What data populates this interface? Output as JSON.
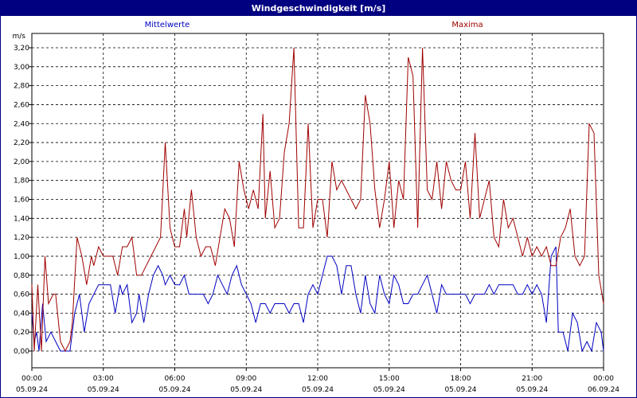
{
  "window_title": "Windgeschwindigkeit [m/s]",
  "chart_data": {
    "type": "line",
    "title": "Windgeschwindigkeit [m/s]",
    "ylabel": "m/s",
    "xlabel": "",
    "ylim": [
      0,
      3.3
    ],
    "xlim_hours": [
      0,
      24
    ],
    "grid": true,
    "y_ticks": [
      "0,00",
      "0,20",
      "0,40",
      "0,60",
      "0,80",
      "1,00",
      "1,20",
      "1,40",
      "1,60",
      "1,80",
      "2,00",
      "2,20",
      "2,40",
      "2,60",
      "2,80",
      "3,00",
      "3,20"
    ],
    "x_ticks": [
      {
        "time": "00:00",
        "date": "05.09.24"
      },
      {
        "time": "03:00",
        "date": "05.09.24"
      },
      {
        "time": "06:00",
        "date": "05.09.24"
      },
      {
        "time": "09:00",
        "date": "05.09.24"
      },
      {
        "time": "12:00",
        "date": "05.09.24"
      },
      {
        "time": "15:00",
        "date": "05.09.24"
      },
      {
        "time": "18:00",
        "date": "05.09.24"
      },
      {
        "time": "21:00",
        "date": "05.09.24"
      },
      {
        "time": "00:00",
        "date": "06.09.24"
      }
    ],
    "series": [
      {
        "name": "Mittelwerte",
        "color": "#0000c0",
        "points": [
          [
            0,
            0.4
          ],
          [
            0.1,
            0.1
          ],
          [
            0.2,
            0.2
          ],
          [
            0.3,
            0
          ],
          [
            0.45,
            0.5
          ],
          [
            0.6,
            0.1
          ],
          [
            0.8,
            0.2
          ],
          [
            1,
            0.1
          ],
          [
            1.2,
            0
          ],
          [
            1.4,
            0
          ],
          [
            1.6,
            0
          ],
          [
            1.8,
            0.4
          ],
          [
            2,
            0.6
          ],
          [
            2.2,
            0.2
          ],
          [
            2.4,
            0.5
          ],
          [
            2.6,
            0.6
          ],
          [
            2.8,
            0.7
          ],
          [
            3.0,
            0.7
          ],
          [
            3.3,
            0.7
          ],
          [
            3.5,
            0.4
          ],
          [
            3.7,
            0.7
          ],
          [
            3.8,
            0.6
          ],
          [
            4,
            0.7
          ],
          [
            4.2,
            0.3
          ],
          [
            4.4,
            0.4
          ],
          [
            4.5,
            0.6
          ],
          [
            4.7,
            0.3
          ],
          [
            4.9,
            0.6
          ],
          [
            5.1,
            0.8
          ],
          [
            5.3,
            0.9
          ],
          [
            5.5,
            0.8
          ],
          [
            5.6,
            0.7
          ],
          [
            5.8,
            0.8
          ],
          [
            6,
            0.7
          ],
          [
            6.2,
            0.7
          ],
          [
            6.4,
            0.8
          ],
          [
            6.6,
            0.6
          ],
          [
            6.8,
            0.6
          ],
          [
            7,
            0.6
          ],
          [
            7.2,
            0.6
          ],
          [
            7.4,
            0.5
          ],
          [
            7.6,
            0.6
          ],
          [
            7.8,
            0.8
          ],
          [
            8,
            0.7
          ],
          [
            8.2,
            0.6
          ],
          [
            8.4,
            0.8
          ],
          [
            8.6,
            0.9
          ],
          [
            8.8,
            0.7
          ],
          [
            9,
            0.6
          ],
          [
            9.2,
            0.5
          ],
          [
            9.4,
            0.3
          ],
          [
            9.6,
            0.5
          ],
          [
            9.8,
            0.5
          ],
          [
            10,
            0.4
          ],
          [
            10.2,
            0.5
          ],
          [
            10.4,
            0.5
          ],
          [
            10.6,
            0.5
          ],
          [
            10.8,
            0.4
          ],
          [
            11,
            0.5
          ],
          [
            11.2,
            0.5
          ],
          [
            11.4,
            0.3
          ],
          [
            11.6,
            0.6
          ],
          [
            11.8,
            0.7
          ],
          [
            12,
            0.6
          ],
          [
            12.2,
            0.8
          ],
          [
            12.4,
            1.0
          ],
          [
            12.6,
            1.0
          ],
          [
            12.8,
            0.9
          ],
          [
            13,
            0.6
          ],
          [
            13.2,
            0.9
          ],
          [
            13.4,
            0.9
          ],
          [
            13.6,
            0.6
          ],
          [
            13.8,
            0.4
          ],
          [
            14,
            0.8
          ],
          [
            14.2,
            0.5
          ],
          [
            14.4,
            0.4
          ],
          [
            14.6,
            0.8
          ],
          [
            14.8,
            0.6
          ],
          [
            15,
            0.5
          ],
          [
            15.2,
            0.8
          ],
          [
            15.4,
            0.7
          ],
          [
            15.6,
            0.5
          ],
          [
            15.8,
            0.5
          ],
          [
            16,
            0.6
          ],
          [
            16.2,
            0.6
          ],
          [
            16.4,
            0.7
          ],
          [
            16.6,
            0.8
          ],
          [
            16.8,
            0.6
          ],
          [
            17,
            0.4
          ],
          [
            17.2,
            0.7
          ],
          [
            17.4,
            0.6
          ],
          [
            17.6,
            0.6
          ],
          [
            17.8,
            0.6
          ],
          [
            18,
            0.6
          ],
          [
            18.2,
            0.6
          ],
          [
            18.4,
            0.5
          ],
          [
            18.6,
            0.6
          ],
          [
            18.8,
            0.6
          ],
          [
            19,
            0.6
          ],
          [
            19.2,
            0.7
          ],
          [
            19.4,
            0.6
          ],
          [
            19.6,
            0.7
          ],
          [
            19.8,
            0.7
          ],
          [
            20,
            0.7
          ],
          [
            20.2,
            0.7
          ],
          [
            20.4,
            0.6
          ],
          [
            20.6,
            0.6
          ],
          [
            20.8,
            0.7
          ],
          [
            21,
            0.6
          ],
          [
            21.2,
            0.7
          ],
          [
            21.4,
            0.6
          ],
          [
            21.6,
            0.3
          ],
          [
            21.8,
            1.0
          ],
          [
            22,
            1.1
          ],
          [
            22.1,
            0.2
          ],
          [
            22.3,
            0.2
          ],
          [
            22.5,
            0
          ],
          [
            22.7,
            0.4
          ],
          [
            22.9,
            0.3
          ],
          [
            23.1,
            0
          ],
          [
            23.3,
            0.1
          ],
          [
            23.5,
            0
          ],
          [
            23.7,
            0.3
          ],
          [
            23.9,
            0.2
          ],
          [
            24,
            0
          ]
        ]
      },
      {
        "name": "Maxima",
        "color": "#a00000",
        "points": [
          [
            0,
            0.7
          ],
          [
            0.1,
            0
          ],
          [
            0.25,
            0.7
          ],
          [
            0.4,
            0
          ],
          [
            0.55,
            1.0
          ],
          [
            0.7,
            0.5
          ],
          [
            0.9,
            0.6
          ],
          [
            1.0,
            0.6
          ],
          [
            1.2,
            0.1
          ],
          [
            1.4,
            0
          ],
          [
            1.6,
            0.1
          ],
          [
            1.7,
            0.3
          ],
          [
            1.9,
            1.2
          ],
          [
            2.1,
            1.0
          ],
          [
            2.3,
            0.7
          ],
          [
            2.5,
            1.0
          ],
          [
            2.6,
            0.9
          ],
          [
            2.8,
            1.1
          ],
          [
            3.0,
            1.0
          ],
          [
            3.2,
            1.0
          ],
          [
            3.4,
            1.0
          ],
          [
            3.6,
            0.8
          ],
          [
            3.8,
            1.1
          ],
          [
            4,
            1.1
          ],
          [
            4.2,
            1.2
          ],
          [
            4.4,
            0.8
          ],
          [
            4.6,
            0.8
          ],
          [
            4.8,
            0.9
          ],
          [
            5.0,
            1.0
          ],
          [
            5.2,
            1.1
          ],
          [
            5.4,
            1.2
          ],
          [
            5.6,
            2.2
          ],
          [
            5.8,
            1.3
          ],
          [
            6.0,
            1.1
          ],
          [
            6.2,
            1.1
          ],
          [
            6.4,
            1.5
          ],
          [
            6.5,
            1.2
          ],
          [
            6.7,
            1.7
          ],
          [
            6.9,
            1.2
          ],
          [
            7.1,
            1.0
          ],
          [
            7.3,
            1.1
          ],
          [
            7.5,
            1.1
          ],
          [
            7.7,
            0.9
          ],
          [
            7.9,
            1.2
          ],
          [
            8.1,
            1.5
          ],
          [
            8.3,
            1.4
          ],
          [
            8.5,
            1.1
          ],
          [
            8.7,
            2.0
          ],
          [
            8.9,
            1.7
          ],
          [
            9.1,
            1.5
          ],
          [
            9.3,
            1.7
          ],
          [
            9.5,
            1.5
          ],
          [
            9.7,
            2.5
          ],
          [
            9.8,
            1.4
          ],
          [
            10,
            1.9
          ],
          [
            10.2,
            1.3
          ],
          [
            10.4,
            1.4
          ],
          [
            10.6,
            2.1
          ],
          [
            10.8,
            2.4
          ],
          [
            11,
            3.2
          ],
          [
            11.2,
            1.3
          ],
          [
            11.4,
            1.3
          ],
          [
            11.6,
            2.4
          ],
          [
            11.8,
            1.3
          ],
          [
            12.0,
            1.6
          ],
          [
            12.2,
            1.6
          ],
          [
            12.4,
            1.2
          ],
          [
            12.6,
            2.0
          ],
          [
            12.8,
            1.7
          ],
          [
            13,
            1.8
          ],
          [
            13.2,
            1.7
          ],
          [
            13.4,
            1.6
          ],
          [
            13.6,
            1.5
          ],
          [
            13.8,
            1.6
          ],
          [
            14,
            2.7
          ],
          [
            14.2,
            2.4
          ],
          [
            14.4,
            1.7
          ],
          [
            14.6,
            1.3
          ],
          [
            14.8,
            1.6
          ],
          [
            15,
            2.0
          ],
          [
            15.2,
            1.3
          ],
          [
            15.4,
            1.8
          ],
          [
            15.6,
            1.6
          ],
          [
            15.8,
            3.1
          ],
          [
            16,
            2.9
          ],
          [
            16.2,
            1.3
          ],
          [
            16.4,
            3.2
          ],
          [
            16.6,
            1.7
          ],
          [
            16.8,
            1.6
          ],
          [
            17,
            2.0
          ],
          [
            17.2,
            1.5
          ],
          [
            17.4,
            2.0
          ],
          [
            17.6,
            1.8
          ],
          [
            17.8,
            1.7
          ],
          [
            18,
            1.7
          ],
          [
            18.2,
            2.0
          ],
          [
            18.4,
            1.4
          ],
          [
            18.6,
            2.3
          ],
          [
            18.8,
            1.4
          ],
          [
            19,
            1.6
          ],
          [
            19.2,
            1.8
          ],
          [
            19.4,
            1.2
          ],
          [
            19.6,
            1.1
          ],
          [
            19.8,
            1.6
          ],
          [
            20,
            1.3
          ],
          [
            20.2,
            1.4
          ],
          [
            20.4,
            1.2
          ],
          [
            20.6,
            1.0
          ],
          [
            20.8,
            1.2
          ],
          [
            21,
            1.0
          ],
          [
            21.2,
            1.1
          ],
          [
            21.4,
            1.0
          ],
          [
            21.6,
            1.1
          ],
          [
            21.8,
            0.9
          ],
          [
            22.0,
            0.9
          ],
          [
            22.2,
            1.2
          ],
          [
            22.4,
            1.3
          ],
          [
            22.6,
            1.5
          ],
          [
            22.8,
            1.0
          ],
          [
            23.0,
            0.9
          ],
          [
            23.2,
            1.0
          ],
          [
            23.4,
            2.4
          ],
          [
            23.6,
            2.3
          ],
          [
            23.8,
            0.8
          ],
          [
            24,
            0.5
          ]
        ]
      }
    ]
  }
}
